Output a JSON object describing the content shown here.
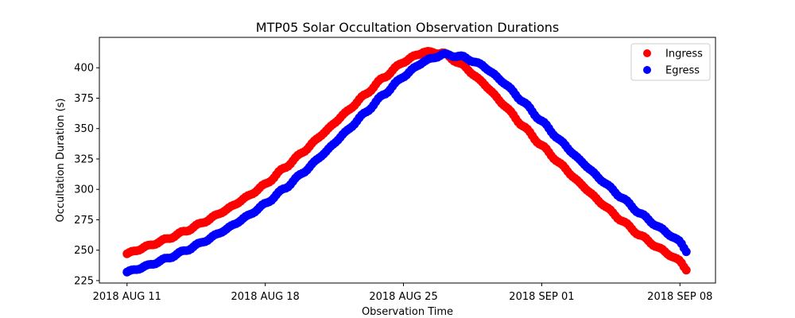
{
  "chart_data": {
    "type": "scatter",
    "title": "MTP05 Solar Occultation Observation Durations",
    "xlabel": "Observation Time",
    "ylabel": "Occultation Duration (s)",
    "x_unit": "days since 2018 AUG 11",
    "xlim": [
      -1.4,
      29.8
    ],
    "ylim": [
      223,
      425
    ],
    "grid": false,
    "legend_position": "top-right",
    "x_ticks": [
      {
        "value": 0,
        "label": "2018 AUG 11"
      },
      {
        "value": 7,
        "label": "2018 AUG 18"
      },
      {
        "value": 14,
        "label": "2018 AUG 25"
      },
      {
        "value": 21,
        "label": "2018 SEP 01"
      },
      {
        "value": 28,
        "label": "2018 SEP 08"
      }
    ],
    "y_ticks": [
      225,
      250,
      275,
      300,
      325,
      350,
      375,
      400
    ],
    "series": [
      {
        "name": "Ingress",
        "color": "#ff0000",
        "x": [
          0,
          1,
          2,
          3,
          4,
          5,
          6,
          7,
          8,
          9,
          10,
          11,
          12,
          13,
          14,
          15,
          16,
          17,
          18,
          19,
          20,
          21,
          22,
          23,
          24,
          25,
          26,
          27,
          28,
          28.4
        ],
        "values": [
          247,
          253,
          259,
          266,
          274,
          283,
          293,
          304,
          318,
          332,
          347,
          362,
          377,
          392,
          405,
          413,
          412,
          402,
          388,
          371,
          353,
          336,
          320,
          304,
          289,
          275,
          262,
          251,
          241,
          233
        ]
      },
      {
        "name": "Egress",
        "color": "#0000ff",
        "x": [
          0,
          1,
          2,
          3,
          4,
          5,
          6,
          7,
          8,
          9,
          10,
          11,
          12,
          13,
          14,
          15,
          16,
          17,
          18,
          19,
          20,
          21,
          22,
          23,
          24,
          25,
          26,
          27,
          28,
          28.4
        ],
        "values": [
          232,
          237,
          243,
          250,
          258,
          267,
          277,
          288,
          301,
          315,
          330,
          346,
          362,
          378,
          393,
          405,
          411,
          409,
          402,
          389,
          373,
          356,
          339,
          323,
          308,
          294,
          280,
          268,
          257,
          248
        ]
      }
    ]
  }
}
